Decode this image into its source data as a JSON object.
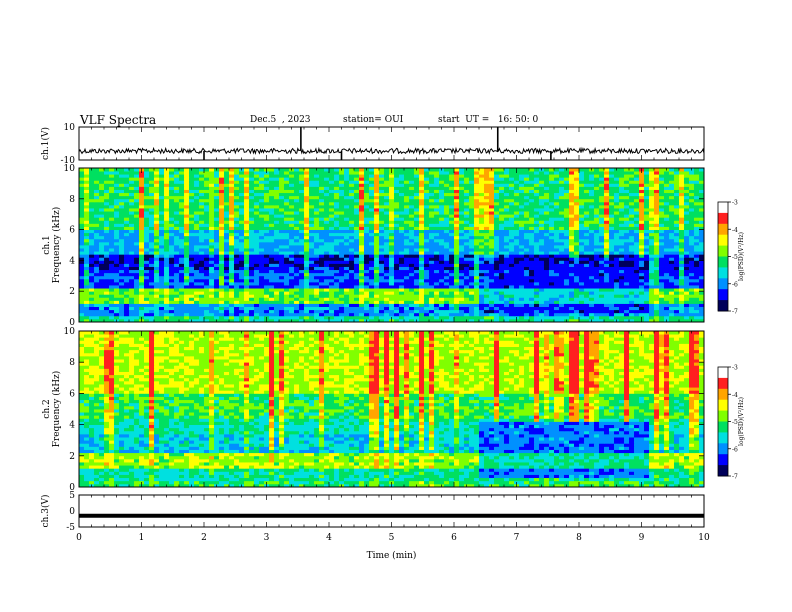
{
  "header": {
    "title": "VLF Spectra",
    "date": "Dec.5  , 2023",
    "station": "station= OUI",
    "start": "start  UT =   16: 50: 0"
  },
  "colorbar": {
    "label": "log(PSD)(V²/Hz)",
    "ticks": [
      "-3",
      "-4",
      "-5",
      "-6",
      "-7"
    ],
    "colors": [
      "#ffffff",
      "#ff2020",
      "#ffa500",
      "#ffff00",
      "#80ff00",
      "#00e060",
      "#00e0e0",
      "#0090ff",
      "#0000ff",
      "#00005a"
    ]
  },
  "chart_data": [
    {
      "type": "line",
      "name": "ch1-waveform",
      "ylabel": "ch.1(V)",
      "yticks": [
        "10",
        "-10"
      ],
      "ylim": [
        -10,
        10
      ],
      "x": [
        0,
        10
      ],
      "baseline": -4.5,
      "spikes": [
        {
          "x": 2.0,
          "y": -10
        },
        {
          "x": 3.55,
          "y": 10
        },
        {
          "x": 4.2,
          "y": -10
        },
        {
          "x": 6.7,
          "y": 10
        },
        {
          "x": 7.55,
          "y": -10
        }
      ]
    },
    {
      "type": "heatmap",
      "name": "ch1-spectrogram",
      "ylabel": "ch.1\nFrequency (kHz)",
      "ylim": [
        0,
        10
      ],
      "yticks": [
        "0",
        "2",
        "4",
        "6",
        "8",
        "10"
      ],
      "xlim": [
        0,
        10
      ],
      "bands": [
        {
          "f0": 0.0,
          "f1": 0.4,
          "level": -5.2
        },
        {
          "f0": 0.4,
          "f1": 1.2,
          "level": -6.0
        },
        {
          "f0": 1.2,
          "f1": 2.3,
          "level": -4.6
        },
        {
          "f0": 2.3,
          "f1": 3.4,
          "level": -6.3
        },
        {
          "f0": 3.4,
          "f1": 4.5,
          "level": -6.6
        },
        {
          "f0": 4.5,
          "f1": 6.0,
          "level": -5.8
        },
        {
          "f0": 6.0,
          "f1": 10.0,
          "level": -5.0
        }
      ],
      "gap": {
        "t0": 6.4,
        "t1": 9.1,
        "level": -6.8
      }
    },
    {
      "type": "heatmap",
      "name": "ch2-spectrogram",
      "ylabel": "ch.2\nFrequency (kHz)",
      "ylim": [
        0,
        10
      ],
      "yticks": [
        "0",
        "2",
        "4",
        "6",
        "8",
        "10"
      ],
      "xlim": [
        0,
        10
      ],
      "bands": [
        {
          "f0": 0.0,
          "f1": 0.4,
          "level": -5.0
        },
        {
          "f0": 0.4,
          "f1": 1.2,
          "level": -5.3
        },
        {
          "f0": 1.2,
          "f1": 2.3,
          "level": -4.4
        },
        {
          "f0": 2.3,
          "f1": 3.4,
          "level": -5.6
        },
        {
          "f0": 3.4,
          "f1": 4.5,
          "level": -5.3
        },
        {
          "f0": 4.5,
          "f1": 6.0,
          "level": -4.9
        },
        {
          "f0": 6.0,
          "f1": 10.0,
          "level": -4.3
        }
      ],
      "gap": {
        "t0": 6.4,
        "t1": 9.1,
        "level": -6.5
      }
    },
    {
      "type": "line",
      "name": "ch3-waveform",
      "ylabel": "ch.3(V)",
      "yticks": [
        "5",
        "0",
        "-5"
      ],
      "ylim": [
        -5,
        5
      ],
      "x": [
        0,
        10
      ],
      "y_constant": -1.5,
      "xlabel": "Time (min)",
      "xticks": [
        "0",
        "1",
        "2",
        "3",
        "4",
        "5",
        "6",
        "7",
        "8",
        "9",
        "10"
      ]
    }
  ]
}
